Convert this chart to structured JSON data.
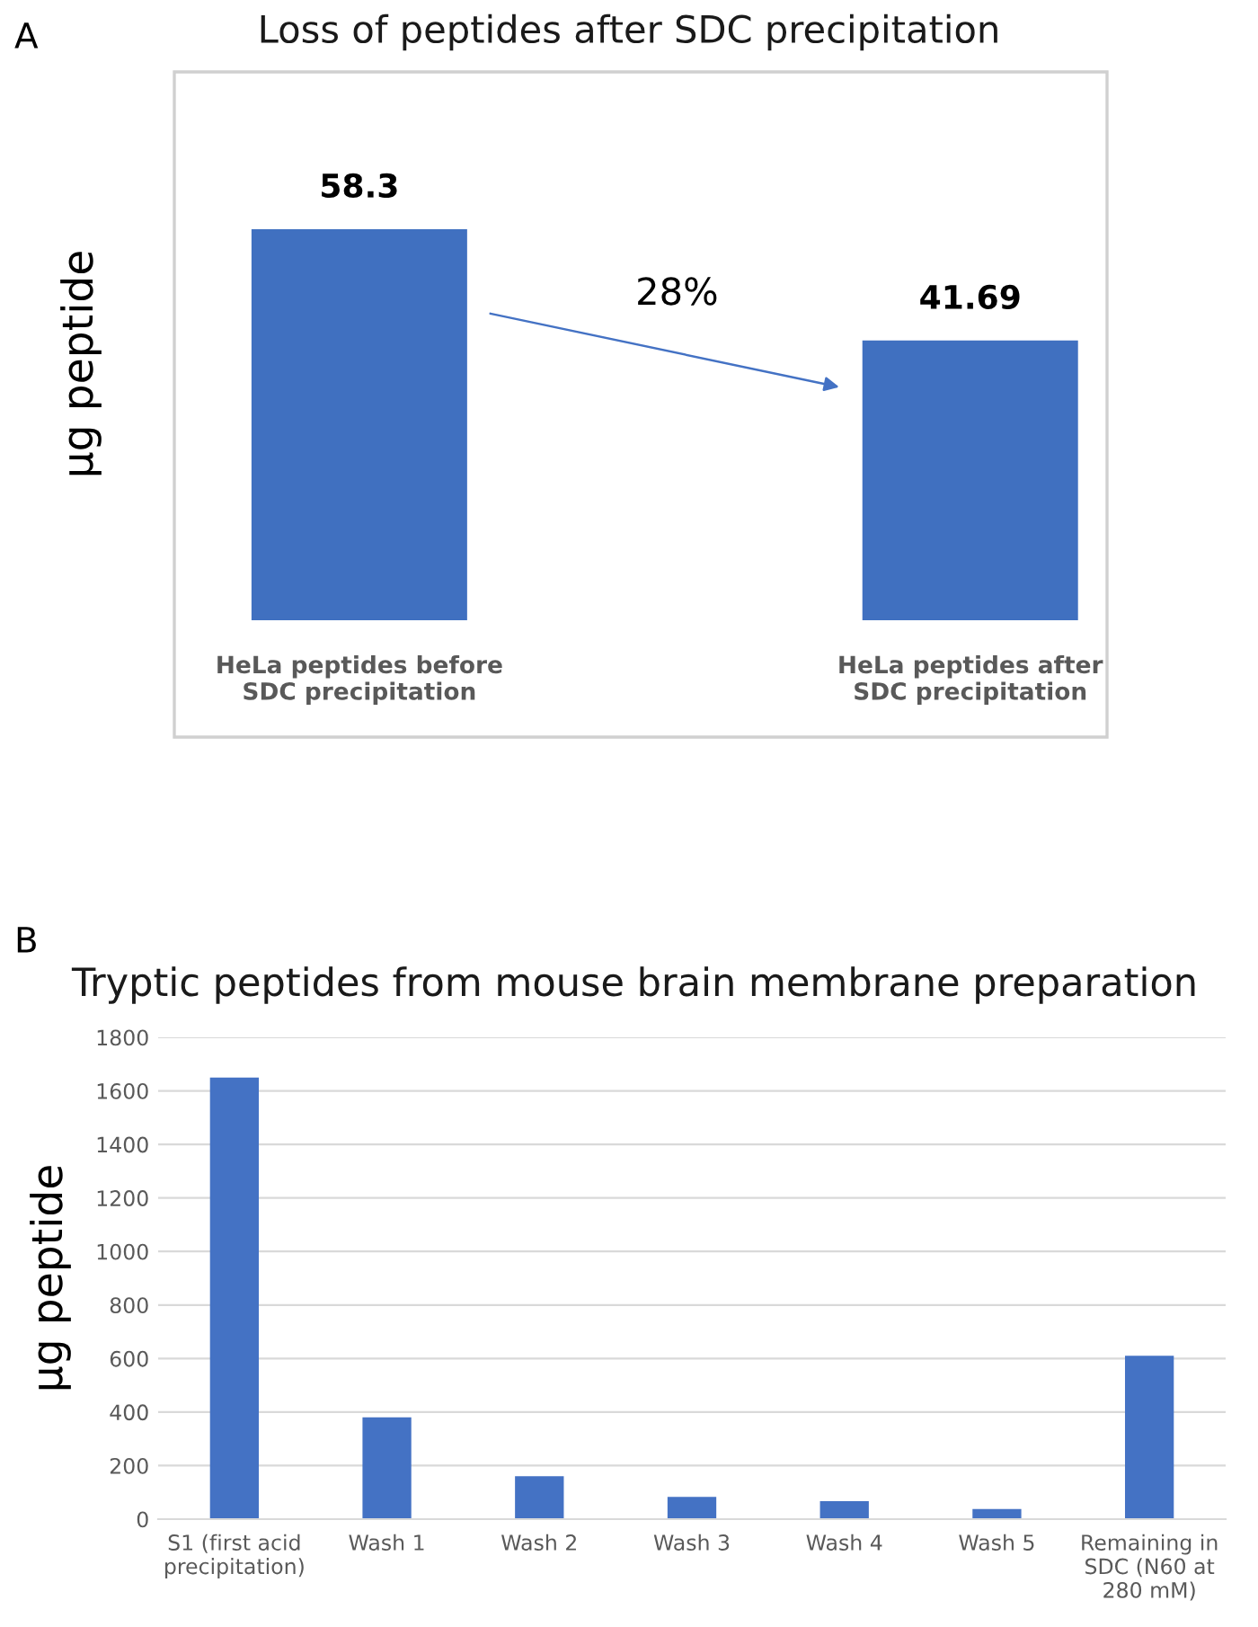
{
  "chart_data": [
    {
      "type": "bar",
      "title": "Loss of peptides after SDC precipitation",
      "ylabel": "µg peptide",
      "categories": [
        "HeLa peptides before\nSDC precipitation",
        "HeLa peptides after\nSDC precipitation"
      ],
      "values": [
        58.3,
        41.69
      ],
      "color": "#4070c0",
      "data_labels": true,
      "tick_labels": "x",
      "grid": false,
      "annotations": [
        "A",
        "28%"
      ]
    },
    {
      "type": "bar",
      "title": "Tryptic peptides from mouse brain membrane preparation",
      "ylabel": "µg peptide",
      "categories": [
        "S1 (first acid\nprecipitation)",
        "Wash 1",
        "Wash 2",
        "Wash 3",
        "Wash 4",
        "Wash 5",
        "Remaining in\nSDC (N60 at\n280 mM)"
      ],
      "values": [
        1650,
        380,
        160,
        83,
        67,
        38,
        610
      ],
      "color": "#4472c4",
      "ylim": [
        0,
        1800
      ],
      "yticks": [
        0,
        200,
        400,
        600,
        800,
        1000,
        1200,
        1400,
        1600,
        1800
      ],
      "grid": "y",
      "annotations": [
        "B"
      ]
    }
  ]
}
